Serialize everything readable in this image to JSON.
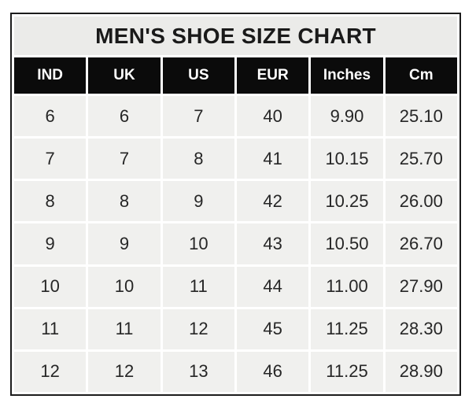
{
  "chart_data": {
    "type": "table",
    "title": "MEN'S SHOE SIZE CHART",
    "columns": [
      "IND",
      "UK",
      "US",
      "EUR",
      "Inches",
      "Cm"
    ],
    "rows": [
      [
        "6",
        "6",
        "7",
        "40",
        "9.90",
        "25.10"
      ],
      [
        "7",
        "7",
        "8",
        "41",
        "10.15",
        "25.70"
      ],
      [
        "8",
        "8",
        "9",
        "42",
        "10.25",
        "26.00"
      ],
      [
        "9",
        "9",
        "10",
        "43",
        "10.50",
        "26.70"
      ],
      [
        "10",
        "10",
        "11",
        "44",
        "11.00",
        "27.90"
      ],
      [
        "11",
        "11",
        "12",
        "45",
        "11.25",
        "28.30"
      ],
      [
        "12",
        "12",
        "13",
        "46",
        "11.25",
        "28.90"
      ]
    ],
    "layout": {
      "grid": "white gaps between cells",
      "legend": "none",
      "title_position": "top merged row"
    }
  },
  "colors": {
    "frame_border": "#1c1c1c",
    "header_bg": "#0b0b0b",
    "header_text": "#ffffff",
    "title_bg": "#ebebe9",
    "title_text": "#1a1a1a",
    "cell_bg": "#f0f0ee",
    "text": "#262626",
    "gap": "#ffffff",
    "page_bg": "#ffffff"
  }
}
